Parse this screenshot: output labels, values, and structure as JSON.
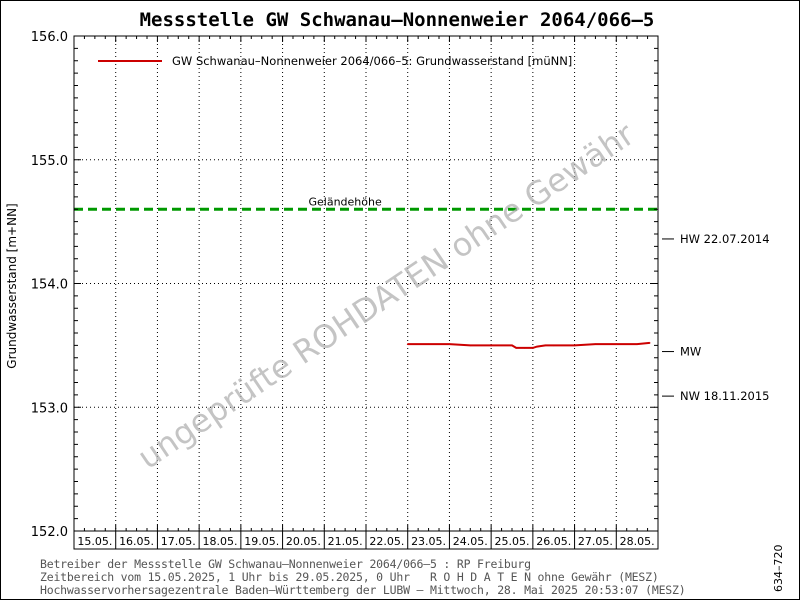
{
  "chart_data": {
    "type": "line",
    "title": "Messstelle GW Schwanau–Nonnenweier 2064/066–5",
    "ylabel": "Grundwasserstand [m+NN]",
    "xlabel": "",
    "ylim": [
      152.0,
      156.0
    ],
    "yticks": [
      "152.0",
      "153.0",
      "154.0",
      "155.0",
      "156.0"
    ],
    "ytick_values": [
      152.0,
      153.0,
      154.0,
      155.0,
      156.0
    ],
    "xlim": [
      0,
      14
    ],
    "x_categories": [
      "15.05.",
      "16.05.",
      "17.05.",
      "18.05.",
      "19.05.",
      "20.05.",
      "21.05.",
      "22.05.",
      "23.05.",
      "24.05.",
      "25.05.",
      "26.05.",
      "27.05.",
      "28.05."
    ],
    "grid": true,
    "legend": "top-left",
    "series": [
      {
        "name": "GW Schwanau–Nonnenweier 2064/066–5: Grundwasserstand [müNN]",
        "color": "#cc0000",
        "x": [
          8.0,
          8.5,
          9.0,
          9.5,
          10.0,
          10.5,
          10.6,
          10.8,
          11.0,
          11.1,
          11.3,
          11.5,
          12.0,
          12.5,
          13.0,
          13.5,
          13.8
        ],
        "y": [
          153.51,
          153.51,
          153.51,
          153.5,
          153.5,
          153.5,
          153.48,
          153.48,
          153.48,
          153.49,
          153.5,
          153.5,
          153.5,
          153.51,
          153.51,
          153.51,
          153.52
        ]
      }
    ],
    "reference_lines": [
      {
        "label": "Geländehöhe",
        "value": 154.6,
        "color": "#009900",
        "style": "dashed"
      }
    ],
    "right_markers": [
      {
        "label": "HW 22.07.2014",
        "value": 154.36
      },
      {
        "label": "MW",
        "value": 153.45
      },
      {
        "label": "NW 18.11.2015",
        "value": 153.09
      }
    ],
    "watermark": "ungeprüfte ROHDATEN ohne Gewähr"
  },
  "footer": {
    "line1": "Betreiber der Messstelle GW Schwanau–Nonnenweier 2064/066–5 : RP Freiburg",
    "line2": "Zeitbereich vom 15.05.2025, 1 Uhr bis 29.05.2025, 0 Uhr   R O H D A T E N ohne Gewähr (MESZ)",
    "line3": "Hochwasservorhersagezentrale Baden–Württemberg der LUBW – Mittwoch, 28. Mai 2025 20:53:07 (MESZ)"
  },
  "side_code": "634–720"
}
